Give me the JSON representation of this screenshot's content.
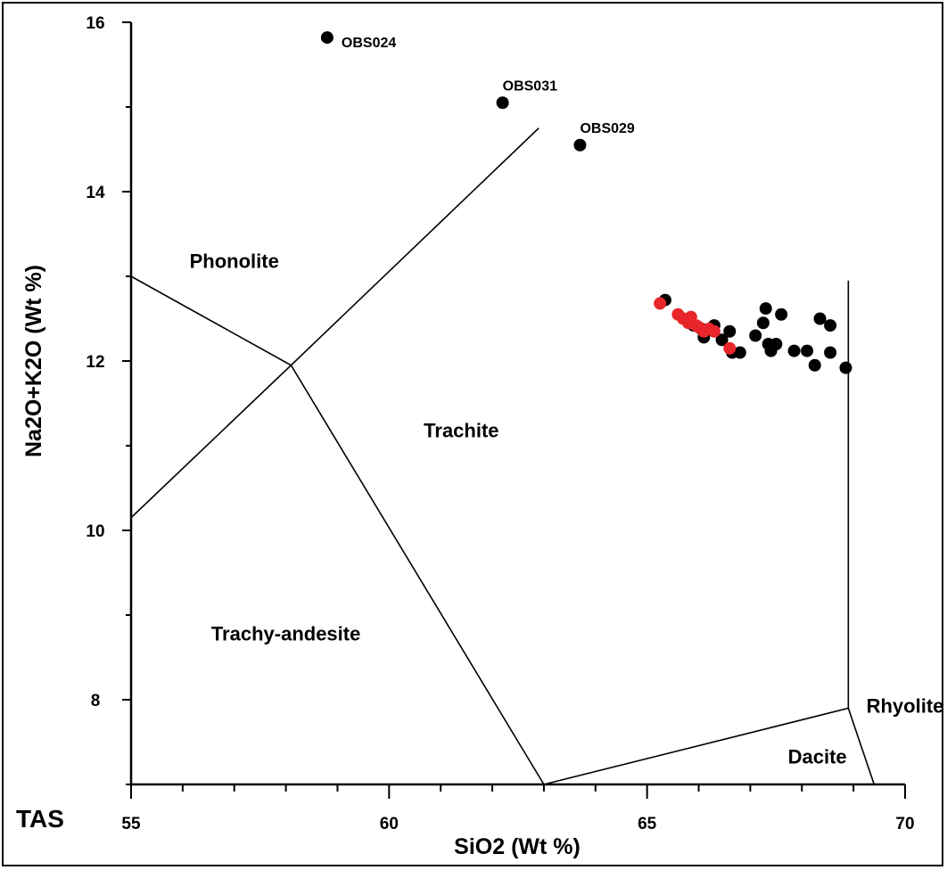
{
  "chart_data": {
    "type": "scatter",
    "title": "",
    "corner_label": "TAS",
    "xlabel": "SiO2 (Wt %)",
    "ylabel": "Na2O+K2O (Wt %)",
    "xlim": [
      55,
      70
    ],
    "ylim": [
      7,
      16
    ],
    "x_ticks": [
      55,
      60,
      65,
      70
    ],
    "y_ticks": [
      8,
      10,
      12,
      14,
      16
    ],
    "grid": false,
    "colors": {
      "series_black": "#000000",
      "series_red": "#e8262a",
      "lines": "#000000"
    },
    "field_boundaries": [
      [
        [
          55,
          13.0
        ],
        [
          58.1,
          11.95
        ],
        [
          63.0,
          7.0
        ]
      ],
      [
        [
          55,
          10.15
        ],
        [
          58.1,
          11.95
        ],
        [
          62.9,
          14.75
        ]
      ],
      [
        [
          63.0,
          7.0
        ],
        [
          68.9,
          7.9
        ],
        [
          69.4,
          7.0
        ]
      ],
      [
        [
          68.9,
          7.9
        ],
        [
          68.9,
          12.95
        ]
      ]
    ],
    "field_labels": [
      {
        "text": "Phonolite",
        "x": 57.0,
        "y": 13.1
      },
      {
        "text": "Trachite",
        "x": 61.4,
        "y": 11.1
      },
      {
        "text": "Trachy-andesite",
        "x": 58.0,
        "y": 8.7
      },
      {
        "text": "Rhyolite",
        "x": 70.0,
        "y": 7.85
      },
      {
        "text": "Dacite",
        "x": 68.3,
        "y": 7.25
      }
    ],
    "labeled_points": [
      {
        "label": "OBS024",
        "x": 58.8,
        "y": 15.82
      },
      {
        "label": "OBS031",
        "x": 62.2,
        "y": 15.05
      },
      {
        "label": "OBS029",
        "x": 63.7,
        "y": 14.55
      }
    ],
    "series": [
      {
        "color": "#000000",
        "points": [
          [
            65.35,
            12.72
          ],
          [
            65.8,
            12.48
          ],
          [
            65.9,
            12.42
          ],
          [
            66.05,
            12.38
          ],
          [
            66.1,
            12.28
          ],
          [
            66.3,
            12.42
          ],
          [
            66.45,
            12.25
          ],
          [
            66.6,
            12.35
          ],
          [
            66.65,
            12.1
          ],
          [
            66.8,
            12.1
          ],
          [
            67.1,
            12.3
          ],
          [
            67.25,
            12.45
          ],
          [
            67.3,
            12.62
          ],
          [
            67.35,
            12.2
          ],
          [
            67.4,
            12.12
          ],
          [
            67.5,
            12.2
          ],
          [
            67.6,
            12.55
          ],
          [
            67.85,
            12.12
          ],
          [
            68.1,
            12.12
          ],
          [
            68.25,
            11.95
          ],
          [
            68.35,
            12.5
          ],
          [
            68.55,
            12.42
          ],
          [
            68.55,
            12.1
          ],
          [
            68.85,
            11.92
          ]
        ]
      },
      {
        "color": "#e8262a",
        "points": [
          [
            65.25,
            12.68
          ],
          [
            65.6,
            12.55
          ],
          [
            65.7,
            12.5
          ],
          [
            65.8,
            12.45
          ],
          [
            65.85,
            12.52
          ],
          [
            65.95,
            12.42
          ],
          [
            66.0,
            12.4
          ],
          [
            66.1,
            12.35
          ],
          [
            66.2,
            12.38
          ],
          [
            66.3,
            12.35
          ],
          [
            66.6,
            12.15
          ]
        ]
      }
    ]
  }
}
